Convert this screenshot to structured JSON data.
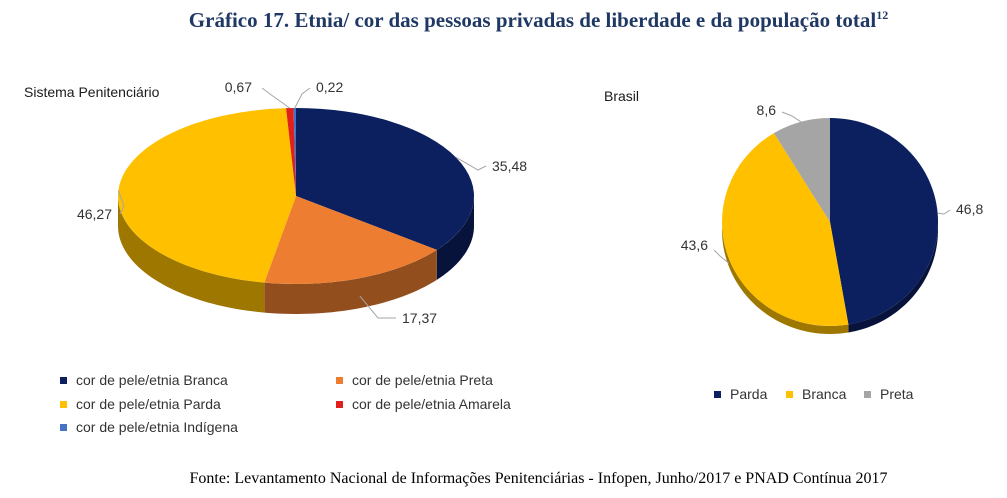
{
  "title": "Gráfico 17. Etnia/ cor das pessoas privadas de liberdade e da população total",
  "title_sup": "12",
  "source": "Fonte: Levantamento Nacional de Informações Penitenciárias - Infopen, Junho/2017 e PNAD Contínua 2017",
  "chart_data": [
    {
      "type": "pie",
      "title": "Sistema Penitenciário",
      "categories": [
        "cor de pele/etnia Branca",
        "cor de pele/etnia Preta",
        "cor de pele/etnia Parda",
        "cor de pele/etnia Amarela",
        "cor de pele/etnia Indígena"
      ],
      "values": [
        35.48,
        17.37,
        46.27,
        0.67,
        0.22
      ],
      "data_labels": [
        "35,48",
        "17,37",
        "46,27",
        "0,67",
        "0,22"
      ],
      "colors": [
        "#0c1f5e",
        "#ed7d31",
        "#ffc000",
        "#e0201b",
        "#4472c4"
      ],
      "legend_placement": "bottom"
    },
    {
      "type": "pie",
      "title": "Brasil",
      "categories": [
        "Parda",
        "Branca",
        "Preta"
      ],
      "values": [
        46.8,
        43.6,
        8.6
      ],
      "data_labels": [
        "46,8",
        "43,6",
        "8,6"
      ],
      "colors": [
        "#0c1f5e",
        "#ffc000",
        "#a5a5a5"
      ],
      "legend_placement": "bottom"
    }
  ]
}
